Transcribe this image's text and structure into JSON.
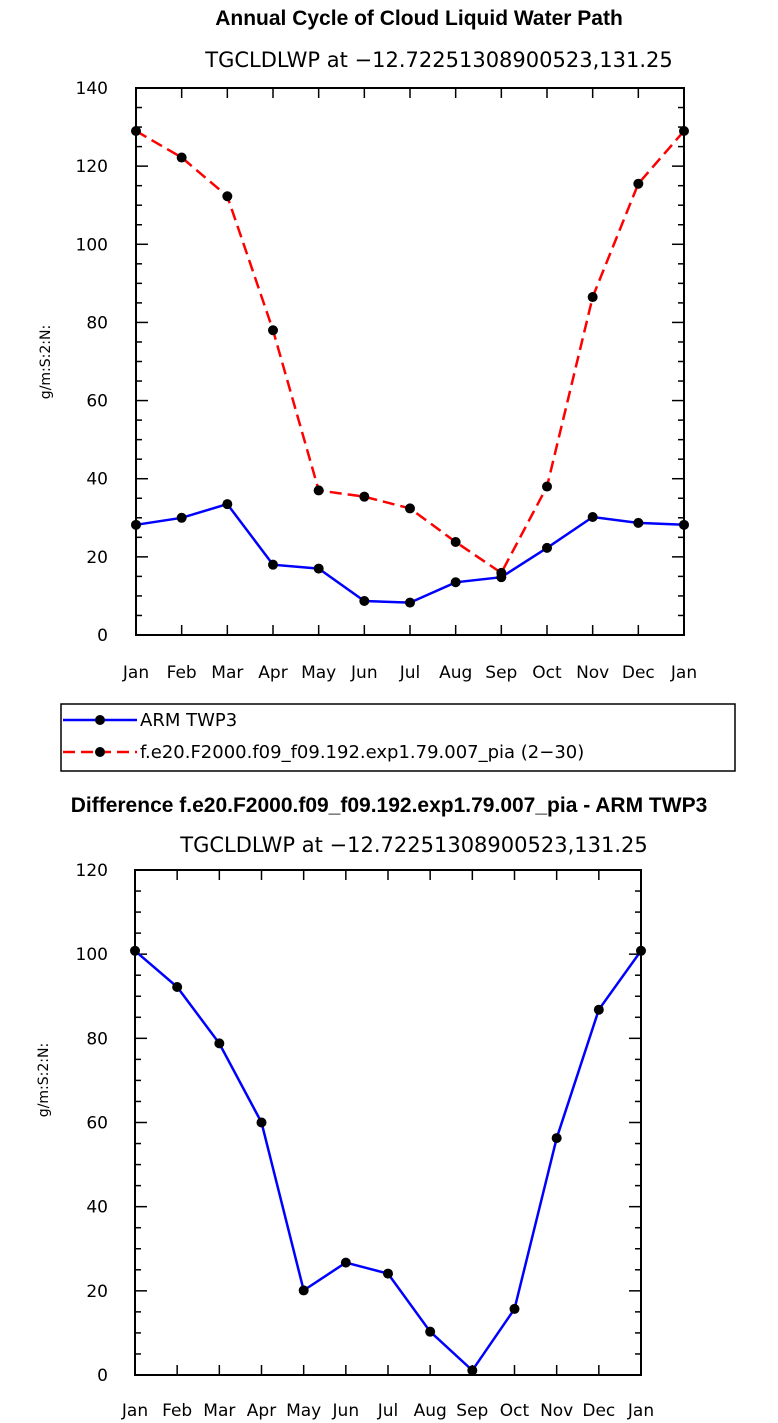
{
  "chart_data": [
    {
      "type": "line",
      "title": "Annual Cycle of Cloud Liquid Water Path",
      "subtitle": "TGCLDLWP at −12.72251308900523,131.25",
      "xlabel": "",
      "ylabel": "g/m:S:2:N:",
      "categories": [
        "Jan",
        "Feb",
        "Mar",
        "Apr",
        "May",
        "Jun",
        "Jul",
        "Aug",
        "Sep",
        "Oct",
        "Nov",
        "Dec",
        "Jan"
      ],
      "ylim": [
        0,
        140
      ],
      "yticks": [
        "0",
        "20",
        "40",
        "60",
        "80",
        "100",
        "120",
        "140"
      ],
      "series": [
        {
          "name": "ARM TWP3",
          "color": "#0000ff",
          "dash": "solid",
          "values": [
            28.2,
            30.0,
            33.5,
            18.0,
            17.0,
            8.7,
            8.3,
            13.5,
            14.8,
            22.3,
            30.2,
            28.7,
            28.2
          ]
        },
        {
          "name": "f.e20.F2000.f09_f09.192.exp1.79.007_pia (2−30)",
          "color": "#ff0000",
          "dash": "dashed",
          "values": [
            129.0,
            122.2,
            112.3,
            78.0,
            37.0,
            35.4,
            32.4,
            23.8,
            15.9,
            38.0,
            86.5,
            115.5,
            129.0
          ]
        }
      ]
    },
    {
      "type": "line",
      "title": "Difference f.e20.F2000.f09_f09.192.exp1.79.007_pia - ARM TWP3",
      "subtitle": "TGCLDLWP at −12.72251308900523,131.25",
      "xlabel": "",
      "ylabel": "g/m:S:2:N:",
      "categories": [
        "Jan",
        "Feb",
        "Mar",
        "Apr",
        "May",
        "Jun",
        "Jul",
        "Aug",
        "Sep",
        "Oct",
        "Nov",
        "Dec",
        "Jan"
      ],
      "ylim": [
        0,
        120
      ],
      "yticks": [
        "0",
        "20",
        "40",
        "60",
        "80",
        "100",
        "120"
      ],
      "series": [
        {
          "name": "Difference",
          "color": "#0000ff",
          "dash": "solid",
          "values": [
            100.8,
            92.2,
            78.8,
            60.0,
            20.1,
            26.7,
            24.1,
            10.3,
            1.1,
            15.7,
            56.3,
            86.8,
            100.8
          ]
        }
      ]
    }
  ]
}
